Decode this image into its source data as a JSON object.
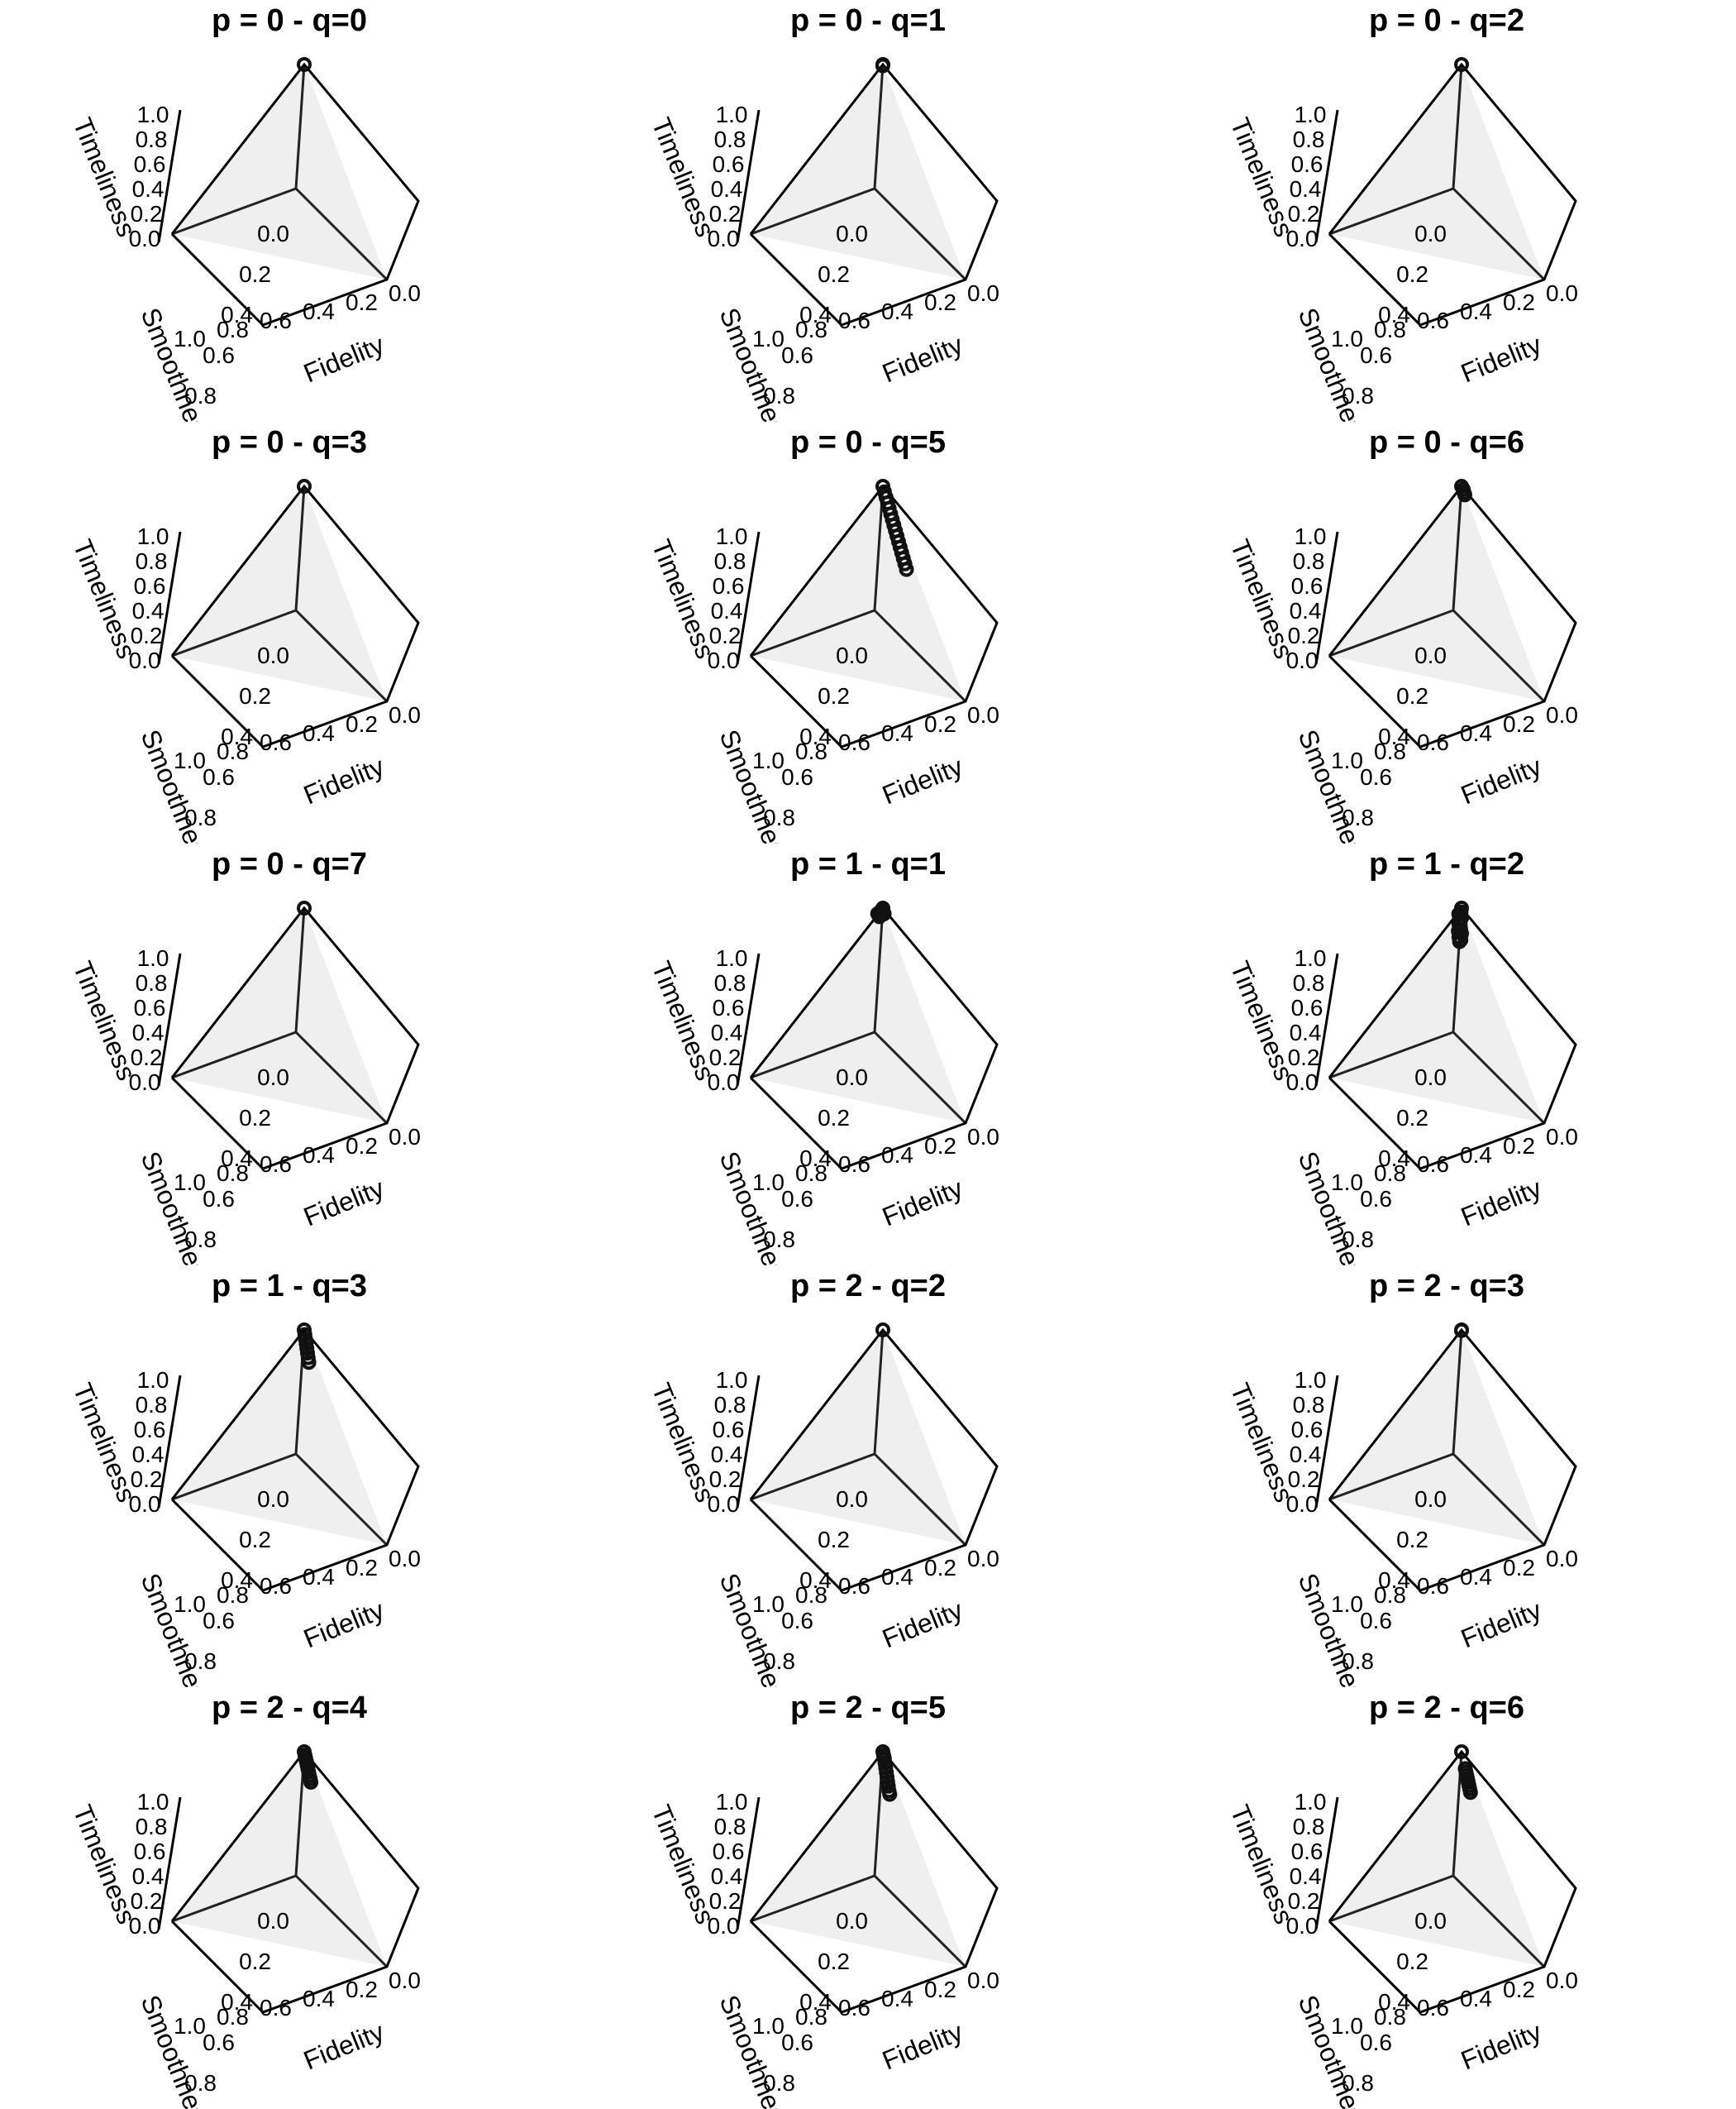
{
  "chart_data": [
    {
      "type": "scatter",
      "title": "p = 0 - q=0",
      "xlabel": "Fidelity",
      "ylabel": "Smoothness",
      "zlabel": "Timeliness",
      "xlim": [
        0,
        1
      ],
      "ylim": [
        0,
        1
      ],
      "zlim": [
        0,
        1
      ],
      "ticks": [
        "0.0",
        "0.2",
        "0.4",
        "0.6",
        "0.8",
        "1.0"
      ],
      "points": [
        {
          "fidelity": 0.0,
          "smoothness": 0.0,
          "timeliness": 1.0
        }
      ]
    },
    {
      "type": "scatter",
      "title": "p = 0 - q=1",
      "xlabel": "Fidelity",
      "ylabel": "Smoothness",
      "zlabel": "Timeliness",
      "xlim": [
        0,
        1
      ],
      "ylim": [
        0,
        1
      ],
      "zlim": [
        0,
        1
      ],
      "ticks": [
        "0.0",
        "0.2",
        "0.4",
        "0.6",
        "0.8",
        "1.0"
      ],
      "points": [
        {
          "fidelity": 0.0,
          "smoothness": 0.0,
          "timeliness": 1.0
        },
        {
          "fidelity": 0.0,
          "smoothness": 0.0,
          "timeliness": 0.99
        }
      ]
    },
    {
      "type": "scatter",
      "title": "p = 0 - q=2",
      "xlabel": "Fidelity",
      "ylabel": "Smoothness",
      "zlabel": "Timeliness",
      "xlim": [
        0,
        1
      ],
      "ylim": [
        0,
        1
      ],
      "zlim": [
        0,
        1
      ],
      "ticks": [
        "0.0",
        "0.2",
        "0.4",
        "0.6",
        "0.8",
        "1.0"
      ],
      "points": [
        {
          "fidelity": 0.0,
          "smoothness": 0.0,
          "timeliness": 1.0
        }
      ]
    },
    {
      "type": "scatter",
      "title": "p = 0 - q=3",
      "xlabel": "Fidelity",
      "ylabel": "Smoothness",
      "zlabel": "Timeliness",
      "xlim": [
        0,
        1
      ],
      "ylim": [
        0,
        1
      ],
      "zlim": [
        0,
        1
      ],
      "ticks": [
        "0.0",
        "0.2",
        "0.4",
        "0.6",
        "0.8",
        "1.0"
      ],
      "points": [
        {
          "fidelity": 0.0,
          "smoothness": 0.0,
          "timeliness": 1.0
        }
      ]
    },
    {
      "type": "scatter",
      "title": "p = 0 - q=5",
      "xlabel": "Fidelity",
      "ylabel": "Smoothness",
      "zlabel": "Timeliness",
      "xlim": [
        0,
        1
      ],
      "ylim": [
        0,
        1
      ],
      "zlim": [
        0,
        1
      ],
      "ticks": [
        "0.0",
        "0.2",
        "0.4",
        "0.6",
        "0.8",
        "1.0"
      ],
      "points": [
        {
          "fidelity": 0.0,
          "smoothness": 0.0,
          "timeliness": 1.0
        },
        {
          "fidelity": 0.02,
          "smoothness": 0.0,
          "timeliness": 0.97
        },
        {
          "fidelity": 0.04,
          "smoothness": 0.0,
          "timeliness": 0.94
        },
        {
          "fidelity": 0.06,
          "smoothness": 0.0,
          "timeliness": 0.91
        },
        {
          "fidelity": 0.08,
          "smoothness": 0.0,
          "timeliness": 0.88
        },
        {
          "fidelity": 0.1,
          "smoothness": 0.0,
          "timeliness": 0.85
        },
        {
          "fidelity": 0.12,
          "smoothness": 0.0,
          "timeliness": 0.82
        },
        {
          "fidelity": 0.14,
          "smoothness": 0.0,
          "timeliness": 0.79
        },
        {
          "fidelity": 0.16,
          "smoothness": 0.0,
          "timeliness": 0.76
        },
        {
          "fidelity": 0.18,
          "smoothness": 0.0,
          "timeliness": 0.73
        },
        {
          "fidelity": 0.2,
          "smoothness": 0.0,
          "timeliness": 0.7
        },
        {
          "fidelity": 0.22,
          "smoothness": 0.0,
          "timeliness": 0.67
        },
        {
          "fidelity": 0.24,
          "smoothness": 0.0,
          "timeliness": 0.64
        },
        {
          "fidelity": 0.26,
          "smoothness": 0.0,
          "timeliness": 0.61
        },
        {
          "fidelity": 0.28,
          "smoothness": 0.0,
          "timeliness": 0.58
        },
        {
          "fidelity": 0.3,
          "smoothness": 0.0,
          "timeliness": 0.55
        }
      ]
    },
    {
      "type": "scatter",
      "title": "p = 0 - q=6",
      "xlabel": "Fidelity",
      "ylabel": "Smoothness",
      "zlabel": "Timeliness",
      "xlim": [
        0,
        1
      ],
      "ylim": [
        0,
        1
      ],
      "zlim": [
        0,
        1
      ],
      "ticks": [
        "0.0",
        "0.2",
        "0.4",
        "0.6",
        "0.8",
        "1.0"
      ],
      "points": [
        {
          "fidelity": 0.0,
          "smoothness": 0.0,
          "timeliness": 1.0
        },
        {
          "fidelity": 0.02,
          "smoothness": 0.0,
          "timeliness": 0.99
        },
        {
          "fidelity": 0.03,
          "smoothness": 0.0,
          "timeliness": 0.97
        },
        {
          "fidelity": 0.04,
          "smoothness": 0.0,
          "timeliness": 0.96
        }
      ]
    },
    {
      "type": "scatter",
      "title": "p = 0 - q=7",
      "xlabel": "Fidelity",
      "ylabel": "Smoothness",
      "zlabel": "Timeliness",
      "xlim": [
        0,
        1
      ],
      "ylim": [
        0,
        1
      ],
      "zlim": [
        0,
        1
      ],
      "ticks": [
        "0.0",
        "0.2",
        "0.4",
        "0.6",
        "0.8",
        "1.0"
      ],
      "points": [
        {
          "fidelity": 0.0,
          "smoothness": 0.0,
          "timeliness": 1.0
        }
      ]
    },
    {
      "type": "scatter",
      "title": "p = 1 - q=1",
      "xlabel": "Fidelity",
      "ylabel": "Smoothness",
      "zlabel": "Timeliness",
      "xlim": [
        0,
        1
      ],
      "ylim": [
        0,
        1
      ],
      "zlim": [
        0,
        1
      ],
      "ticks": [
        "0.0",
        "0.2",
        "0.4",
        "0.6",
        "0.8",
        "1.0"
      ],
      "points": [
        {
          "fidelity": 0.0,
          "smoothness": 0.0,
          "timeliness": 1.0
        },
        {
          "fidelity": 0.01,
          "smoothness": 0.01,
          "timeliness": 0.99
        },
        {
          "fidelity": 0.0,
          "smoothness": 0.02,
          "timeliness": 0.98
        },
        {
          "fidelity": 0.01,
          "smoothness": 0.03,
          "timeliness": 0.97
        },
        {
          "fidelity": 0.02,
          "smoothness": 0.02,
          "timeliness": 0.98
        },
        {
          "fidelity": 0.0,
          "smoothness": 0.04,
          "timeliness": 0.97
        },
        {
          "fidelity": 0.02,
          "smoothness": 0.04,
          "timeliness": 0.96
        },
        {
          "fidelity": 0.03,
          "smoothness": 0.01,
          "timeliness": 0.98
        }
      ]
    },
    {
      "type": "scatter",
      "title": "p = 1 - q=2",
      "xlabel": "Fidelity",
      "ylabel": "Smoothness",
      "zlabel": "Timeliness",
      "xlim": [
        0,
        1
      ],
      "ylim": [
        0,
        1
      ],
      "zlim": [
        0,
        1
      ],
      "ticks": [
        "0.0",
        "0.2",
        "0.4",
        "0.6",
        "0.8",
        "1.0"
      ],
      "points": [
        {
          "fidelity": 0.0,
          "smoothness": 0.0,
          "timeliness": 1.0
        },
        {
          "fidelity": 0.01,
          "smoothness": 0.01,
          "timeliness": 0.98
        },
        {
          "fidelity": 0.0,
          "smoothness": 0.02,
          "timeliness": 0.96
        },
        {
          "fidelity": 0.02,
          "smoothness": 0.01,
          "timeliness": 0.94
        },
        {
          "fidelity": 0.01,
          "smoothness": 0.02,
          "timeliness": 0.92
        },
        {
          "fidelity": 0.02,
          "smoothness": 0.03,
          "timeliness": 0.9
        },
        {
          "fidelity": 0.01,
          "smoothness": 0.01,
          "timeliness": 0.88
        },
        {
          "fidelity": 0.03,
          "smoothness": 0.02,
          "timeliness": 0.86
        },
        {
          "fidelity": 0.02,
          "smoothness": 0.03,
          "timeliness": 0.84
        },
        {
          "fidelity": 0.03,
          "smoothness": 0.01,
          "timeliness": 0.82
        },
        {
          "fidelity": 0.03,
          "smoothness": 0.03,
          "timeliness": 0.8
        },
        {
          "fidelity": 0.04,
          "smoothness": 0.02,
          "timeliness": 0.78
        },
        {
          "fidelity": 0.04,
          "smoothness": 0.03,
          "timeliness": 0.77
        }
      ]
    },
    {
      "type": "scatter",
      "title": "p = 1 - q=3",
      "xlabel": "Fidelity",
      "ylabel": "Smoothness",
      "zlabel": "Timeliness",
      "xlim": [
        0,
        1
      ],
      "ylim": [
        0,
        1
      ],
      "zlim": [
        0,
        1
      ],
      "ticks": [
        "0.0",
        "0.2",
        "0.4",
        "0.6",
        "0.8",
        "1.0"
      ],
      "points": [
        {
          "fidelity": 0.0,
          "smoothness": 0.0,
          "timeliness": 1.0
        },
        {
          "fidelity": 0.01,
          "smoothness": 0.0,
          "timeliness": 0.97
        },
        {
          "fidelity": 0.02,
          "smoothness": 0.0,
          "timeliness": 0.94
        },
        {
          "fidelity": 0.03,
          "smoothness": 0.0,
          "timeliness": 0.91
        },
        {
          "fidelity": 0.04,
          "smoothness": 0.0,
          "timeliness": 0.88
        },
        {
          "fidelity": 0.05,
          "smoothness": 0.0,
          "timeliness": 0.85
        },
        {
          "fidelity": 0.06,
          "smoothness": 0.0,
          "timeliness": 0.82
        },
        {
          "fidelity": 0.07,
          "smoothness": 0.0,
          "timeliness": 0.79
        }
      ]
    },
    {
      "type": "scatter",
      "title": "p = 2 - q=2",
      "xlabel": "Fidelity",
      "ylabel": "Smoothness",
      "zlabel": "Timeliness",
      "xlim": [
        0,
        1
      ],
      "ylim": [
        0,
        1
      ],
      "zlim": [
        0,
        1
      ],
      "ticks": [
        "0.0",
        "0.2",
        "0.4",
        "0.6",
        "0.8",
        "1.0"
      ],
      "points": [
        {
          "fidelity": 0.0,
          "smoothness": 0.0,
          "timeliness": 1.0
        }
      ]
    },
    {
      "type": "scatter",
      "title": "p = 2 - q=3",
      "xlabel": "Fidelity",
      "ylabel": "Smoothness",
      "zlabel": "Timeliness",
      "xlim": [
        0,
        1
      ],
      "ylim": [
        0,
        1
      ],
      "zlim": [
        0,
        1
      ],
      "ticks": [
        "0.0",
        "0.2",
        "0.4",
        "0.6",
        "0.8",
        "1.0"
      ],
      "points": [
        {
          "fidelity": 0.0,
          "smoothness": 0.0,
          "timeliness": 1.0
        },
        {
          "fidelity": 0.0,
          "smoothness": 0.0,
          "timeliness": 0.995
        }
      ]
    },
    {
      "type": "scatter",
      "title": "p = 2 - q=4",
      "xlabel": "Fidelity",
      "ylabel": "Smoothness",
      "zlabel": "Timeliness",
      "xlim": [
        0,
        1
      ],
      "ylim": [
        0,
        1
      ],
      "zlim": [
        0,
        1
      ],
      "ticks": [
        "0.0",
        "0.2",
        "0.4",
        "0.6",
        "0.8",
        "1.0"
      ],
      "points": [
        {
          "fidelity": 0.0,
          "smoothness": 0.0,
          "timeliness": 1.0
        },
        {
          "fidelity": 0.01,
          "smoothness": 0.0,
          "timeliness": 0.98
        },
        {
          "fidelity": 0.02,
          "smoothness": 0.0,
          "timeliness": 0.96
        },
        {
          "fidelity": 0.03,
          "smoothness": 0.0,
          "timeliness": 0.94
        },
        {
          "fidelity": 0.04,
          "smoothness": 0.0,
          "timeliness": 0.92
        },
        {
          "fidelity": 0.05,
          "smoothness": 0.0,
          "timeliness": 0.9
        },
        {
          "fidelity": 0.06,
          "smoothness": 0.0,
          "timeliness": 0.88
        },
        {
          "fidelity": 0.07,
          "smoothness": 0.0,
          "timeliness": 0.86
        },
        {
          "fidelity": 0.08,
          "smoothness": 0.0,
          "timeliness": 0.84
        },
        {
          "fidelity": 0.09,
          "smoothness": 0.0,
          "timeliness": 0.82
        }
      ]
    },
    {
      "type": "scatter",
      "title": "p = 2 - q=5",
      "xlabel": "Fidelity",
      "ylabel": "Smoothness",
      "zlabel": "Timeliness",
      "xlim": [
        0,
        1
      ],
      "ylim": [
        0,
        1
      ],
      "zlim": [
        0,
        1
      ],
      "ticks": [
        "0.0",
        "0.2",
        "0.4",
        "0.6",
        "0.8",
        "1.0"
      ],
      "points": [
        {
          "fidelity": 0.0,
          "smoothness": 0.0,
          "timeliness": 1.0
        },
        {
          "fidelity": 0.01,
          "smoothness": 0.0,
          "timeliness": 0.98
        },
        {
          "fidelity": 0.02,
          "smoothness": 0.0,
          "timeliness": 0.96
        },
        {
          "fidelity": 0.03,
          "smoothness": 0.0,
          "timeliness": 0.93
        },
        {
          "fidelity": 0.04,
          "smoothness": 0.0,
          "timeliness": 0.9
        },
        {
          "fidelity": 0.05,
          "smoothness": 0.0,
          "timeliness": 0.87
        },
        {
          "fidelity": 0.06,
          "smoothness": 0.0,
          "timeliness": 0.84
        },
        {
          "fidelity": 0.07,
          "smoothness": 0.0,
          "timeliness": 0.81
        },
        {
          "fidelity": 0.08,
          "smoothness": 0.0,
          "timeliness": 0.78
        },
        {
          "fidelity": 0.09,
          "smoothness": 0.0,
          "timeliness": 0.75
        },
        {
          "fidelity": 0.1,
          "smoothness": 0.0,
          "timeliness": 0.73
        }
      ]
    },
    {
      "type": "scatter",
      "title": "p = 2 - q=6",
      "xlabel": "Fidelity",
      "ylabel": "Smoothness",
      "zlabel": "Timeliness",
      "xlim": [
        0,
        1
      ],
      "ylim": [
        0,
        1
      ],
      "zlim": [
        0,
        1
      ],
      "ticks": [
        "0.0",
        "0.2",
        "0.4",
        "0.6",
        "0.8",
        "1.0"
      ],
      "points": [
        {
          "fidelity": 0.0,
          "smoothness": 0.0,
          "timeliness": 1.0
        },
        {
          "fidelity": 0.05,
          "smoothness": 0.0,
          "timeliness": 0.9
        },
        {
          "fidelity": 0.06,
          "smoothness": 0.0,
          "timeliness": 0.88
        },
        {
          "fidelity": 0.07,
          "smoothness": 0.0,
          "timeliness": 0.86
        },
        {
          "fidelity": 0.08,
          "smoothness": 0.0,
          "timeliness": 0.84
        },
        {
          "fidelity": 0.09,
          "smoothness": 0.0,
          "timeliness": 0.82
        },
        {
          "fidelity": 0.1,
          "smoothness": 0.0,
          "timeliness": 0.8
        },
        {
          "fidelity": 0.11,
          "smoothness": 0.0,
          "timeliness": 0.78
        },
        {
          "fidelity": 0.12,
          "smoothness": 0.0,
          "timeliness": 0.76
        }
      ]
    }
  ]
}
